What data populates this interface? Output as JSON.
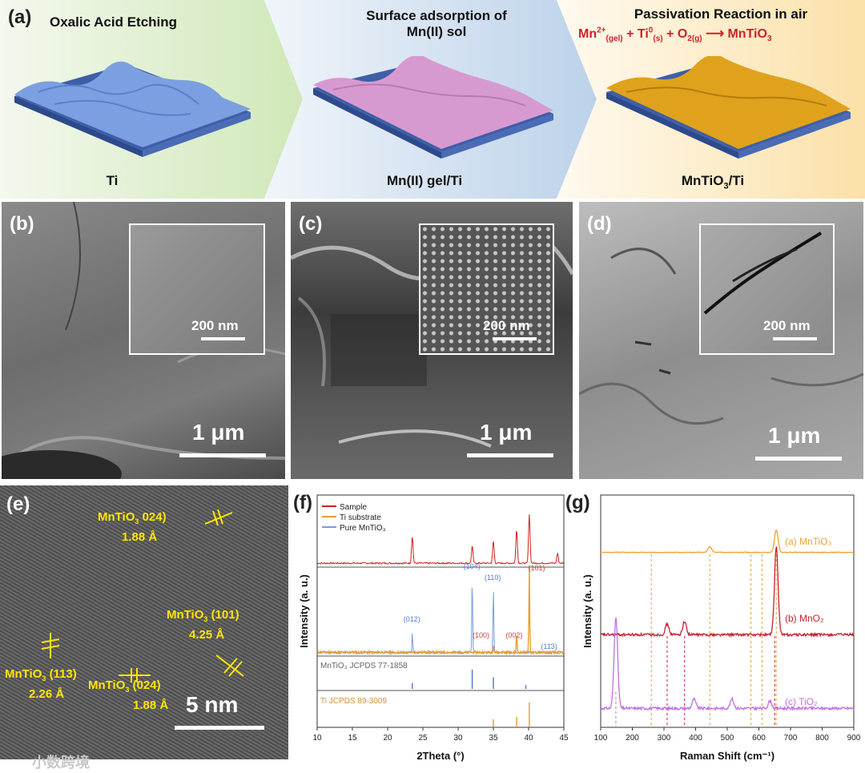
{
  "panel_a": {
    "label": "(a)",
    "step1_title": "Oxalic Acid Etching",
    "step2_title_line1": "Surface adsorption of",
    "step2_title_line2": "Mn(II) sol",
    "step3_title": "Passivation Reaction in air",
    "reaction": {
      "mn": "Mn",
      "mn_sup": "2+",
      "mn_sub": "(gel)",
      "ti": "+ Ti",
      "ti_sup": "0",
      "ti_sub": "(s)",
      "o2": "+ O",
      "o2_sub": "2(g)",
      "arrow": "⟶",
      "product": "MnTiO",
      "product_sub": "3"
    },
    "sample1": "Ti",
    "sample2": "Mn(II) gel/Ti",
    "sample3_main": "MnTiO",
    "sample3_sub": "3",
    "sample3_tail": "/Ti",
    "colors": {
      "ti": "#7b9fe0",
      "gel": "#d79ad0",
      "mntio3": "#e0a21c",
      "reaction": "#d0202a"
    }
  },
  "panel_b": {
    "label": "(b)",
    "inset_scale": "200 nm",
    "main_scale": "1 μm"
  },
  "panel_c": {
    "label": "(c)",
    "inset_scale": "200 nm",
    "main_scale": "1 μm"
  },
  "panel_d": {
    "label": "(d)",
    "inset_scale": "200 nm",
    "main_scale": "1 μm"
  },
  "panel_e": {
    "label": "(e)",
    "ann1_a": "MnTiO",
    "ann1_sub": "3",
    "ann1_b": " 024)",
    "ann1_d": "1.88 Å",
    "ann2_a": "MnTiO",
    "ann2_sub": "3",
    "ann2_b": " (101)",
    "ann2_d": "4.25 Å",
    "ann3_a": "MnTiO",
    "ann3_sub": "3",
    "ann3_b": " (113)",
    "ann3_d": "2.26 Å",
    "ann4_a": "MnTiO",
    "ann4_sub": "3",
    "ann4_b": " (024)",
    "ann4_d": "1.88 Å",
    "scale": "5 nm"
  },
  "panel_f": {
    "label": "(f)"
  },
  "panel_g": {
    "label": "(g)"
  },
  "watermark": "小数跨境",
  "chart_data": [
    {
      "type": "line",
      "panel": "f",
      "xlabel": "2Theta (°)",
      "ylabel": "Intensity (a. u.)",
      "xlim": [
        10,
        45
      ],
      "xticks": [
        10,
        15,
        20,
        25,
        30,
        35,
        40,
        45
      ],
      "legend": [
        "Sample",
        "Ti substrate",
        "Pure MnTiO₃"
      ],
      "legend_colors": [
        "#d02020",
        "#e8a030",
        "#7a9ae0"
      ],
      "sample_peaks": [
        [
          23.5,
          0.55
        ],
        [
          32.0,
          0.35
        ],
        [
          35.0,
          0.45
        ],
        [
          38.3,
          0.7
        ],
        [
          40.1,
          1.0
        ],
        [
          44.1,
          0.2
        ]
      ],
      "mntio3_peaks": [
        [
          23.5,
          0.25
        ],
        [
          32.0,
          1.0
        ],
        [
          35.0,
          0.85
        ]
      ],
      "ti_peaks": [
        [
          35.0,
          0.1
        ],
        [
          38.3,
          0.22
        ],
        [
          40.1,
          1.0
        ]
      ],
      "peak_labels_blue": [
        "(012)",
        "(104)",
        "(110)",
        "(11̄3)"
      ],
      "peak_labels_red": [
        "(100)",
        "(002)",
        "(101)"
      ],
      "ref1": "MnTiO₃ JCPDS 77-1858",
      "ref1_sticks": [
        [
          23.5,
          0.3
        ],
        [
          32.0,
          1.0
        ],
        [
          35.0,
          0.6
        ],
        [
          39.6,
          0.2
        ]
      ],
      "ref2": "Ti JCPDS 89-3009",
      "ref2_sticks": [
        [
          35.0,
          0.3
        ],
        [
          38.3,
          0.4
        ],
        [
          40.1,
          1.0
        ]
      ]
    },
    {
      "type": "line",
      "panel": "g",
      "xlabel": "Raman Shift (cm⁻¹)",
      "ylabel": "Intensity (a. u.)",
      "xlim": [
        100,
        900
      ],
      "xticks": [
        100,
        200,
        300,
        400,
        500,
        600,
        700,
        800,
        900
      ],
      "series": [
        {
          "name": "(a) MnTiO₃",
          "color": "#f0a030",
          "peaks": [
            [
              445,
              0.25
            ],
            [
              655,
              1.0
            ]
          ]
        },
        {
          "name": "(b) MnO₂",
          "color": "#c82030",
          "peaks": [
            [
              310,
              0.12
            ],
            [
              365,
              0.15
            ],
            [
              655,
              1.0
            ]
          ]
        },
        {
          "name": "(c) TiO₂",
          "color": "#c070e0",
          "peaks": [
            [
              148,
              1.0
            ],
            [
              395,
              0.1
            ],
            [
              515,
              0.1
            ],
            [
              635,
              0.08
            ]
          ]
        }
      ],
      "orange_dashed": [
        260,
        445,
        575,
        610,
        655
      ],
      "red_dashed": [
        310,
        365,
        650
      ],
      "purple_dashed": [
        148
      ]
    }
  ]
}
